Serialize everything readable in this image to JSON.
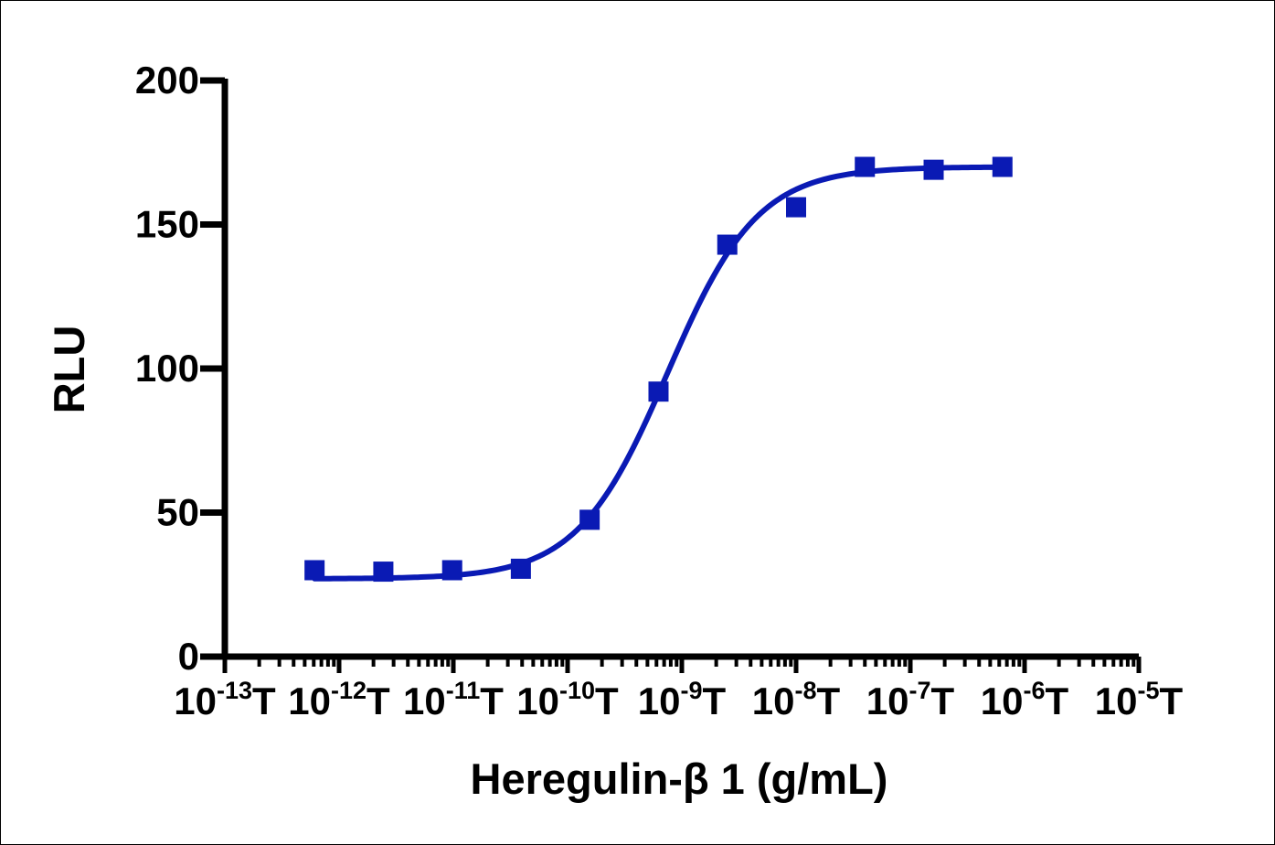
{
  "chart_data": {
    "type": "scatter",
    "xlabel": "Heregulin-β 1 (g/mL)",
    "ylabel": "RLU",
    "x_scale": "log",
    "xlim": [
      1e-13,
      1e-05
    ],
    "ylim": [
      0,
      200
    ],
    "y_ticks": [
      "0",
      "50",
      "100",
      "150",
      "200"
    ],
    "x_tick_labels": [
      {
        "base": "10",
        "exp": "-13",
        "suffix": "T"
      },
      {
        "base": "10",
        "exp": "-12",
        "suffix": "T"
      },
      {
        "base": "10",
        "exp": "-11",
        "suffix": "T"
      },
      {
        "base": "10",
        "exp": "-10",
        "suffix": "T"
      },
      {
        "base": "10",
        "exp": "-9",
        "suffix": "T"
      },
      {
        "base": "10",
        "exp": "-8",
        "suffix": "T"
      },
      {
        "base": "10",
        "exp": "-7",
        "suffix": "T"
      },
      {
        "base": "10",
        "exp": "-6",
        "suffix": "T"
      },
      {
        "base": "10",
        "exp": "-5",
        "suffix": "T"
      }
    ],
    "grid": false,
    "color": "#0a1ab4",
    "marker": "square",
    "series": [
      {
        "x": [
          6.1e-13,
          2.44e-12,
          9.77e-12,
          3.9e-11,
          1.56e-10,
          6.25e-10,
          2.5e-09,
          1e-08,
          4e-08,
          1.6e-07,
          6.4e-07
        ],
        "y": [
          30,
          29.5,
          30,
          30.5,
          47.5,
          92,
          143,
          156,
          170,
          169,
          170
        ]
      }
    ],
    "fit": {
      "model": "4PL",
      "bottom": 27,
      "top": 170,
      "ec50": 7.5e-10,
      "hill": 1.1
    }
  }
}
